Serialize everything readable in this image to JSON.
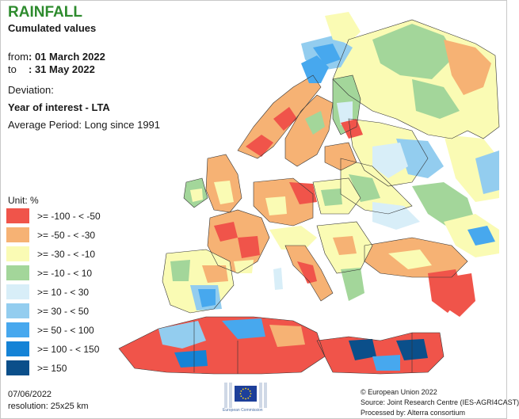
{
  "header": {
    "title": "RAINFALL",
    "subtitle": "Cumulated values",
    "from_label": "from",
    "from_value": ": 01 March 2022",
    "to_label": "to",
    "to_value": ": 31 May 2022",
    "deviation_label": "Deviation:",
    "interest_label": "Year of interest - LTA",
    "average_period": "Average Period: Long since 1991"
  },
  "legend": {
    "unit": "Unit:  %",
    "classes": [
      {
        "label": ">= -100 - < -50",
        "color": "#f0544a"
      },
      {
        "label": ">= -50 - < -30",
        "color": "#f6b274"
      },
      {
        "label": ">= -30 - < -10",
        "color": "#fafbb4"
      },
      {
        "label": ">= -10 - < 10",
        "color": "#a3d69a"
      },
      {
        "label": ">= 10 - < 30",
        "color": "#d8eef8"
      },
      {
        "label": ">= 30 - < 50",
        "color": "#93cdef"
      },
      {
        "label": ">= 50 - < 100",
        "color": "#47a8ee"
      },
      {
        "label": ">= 100 - < 150",
        "color": "#1583d6"
      },
      {
        "label": ">= 150",
        "color": "#0b4f8a"
      }
    ]
  },
  "footer": {
    "date": "07/06/2022",
    "resolution": "resolution:  25x25 km",
    "copyright": "© European Union 2022",
    "source": "Source: Joint Research Centre (IES-AGRI4CAST)",
    "processed_by": "Processed by: Alterra consortium"
  },
  "logo": {
    "sublabel": "European Commission",
    "colors": {
      "flag": "#1d3f9a",
      "stars": "#ffd617"
    }
  },
  "map_colors": {
    "sea": "#ffffff",
    "border": "#333333"
  }
}
